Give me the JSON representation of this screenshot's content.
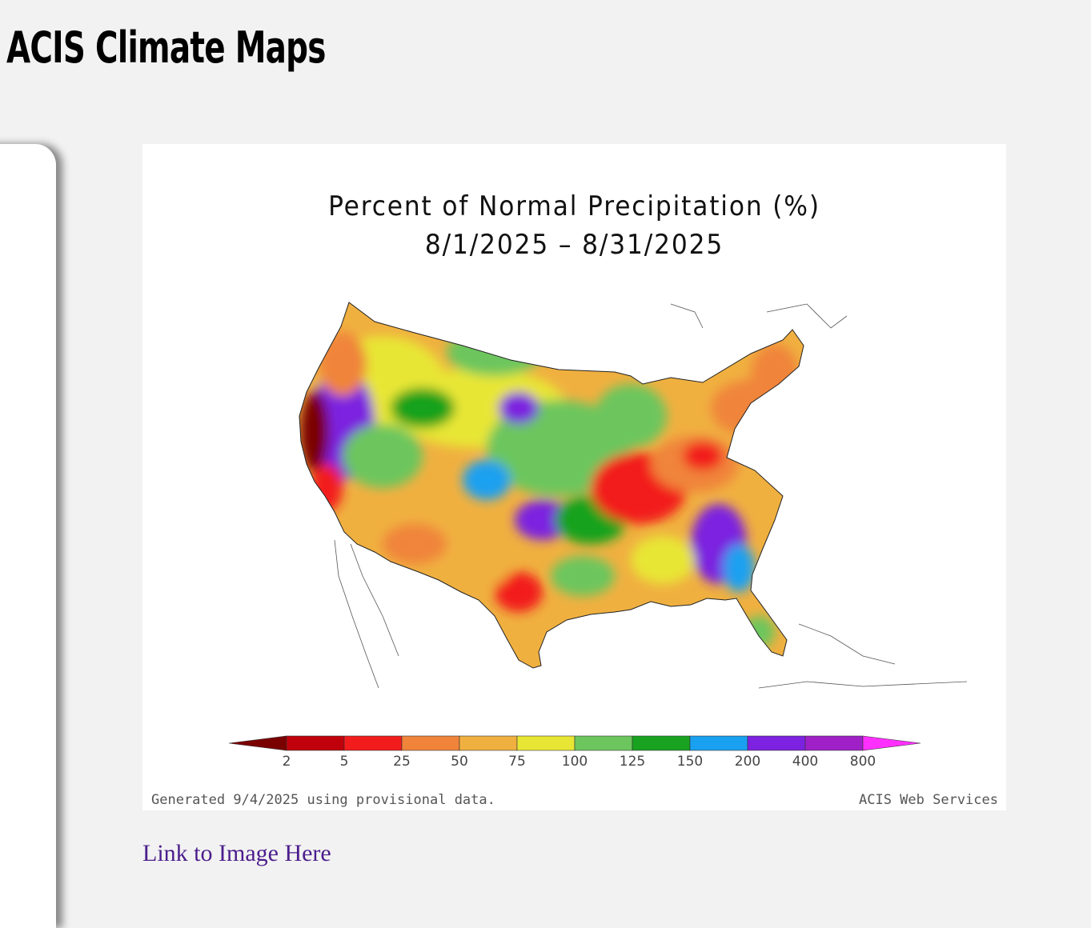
{
  "page": {
    "title": "ACIS Climate Maps",
    "link_label": "Link to Image Here"
  },
  "map": {
    "title_line1": "Percent of Normal Precipitation (%)",
    "title_line2": "8/1/2025 – 8/31/2025",
    "footer_left": "Generated 9/4/2025 using provisional data.",
    "footer_right": "ACIS Web Services",
    "region": "contiguous United States",
    "colorbar": {
      "ticks": [
        "2",
        "5",
        "25",
        "50",
        "75",
        "100",
        "125",
        "150",
        "200",
        "400",
        "800"
      ],
      "colors": [
        "#7a0000",
        "#c0000b",
        "#f21c1c",
        "#f0843b",
        "#f0b040",
        "#e8e635",
        "#6cc65d",
        "#19a21f",
        "#1aa0f0",
        "#7c22e0",
        "#a020c8",
        "#ff30ff"
      ]
    }
  }
}
